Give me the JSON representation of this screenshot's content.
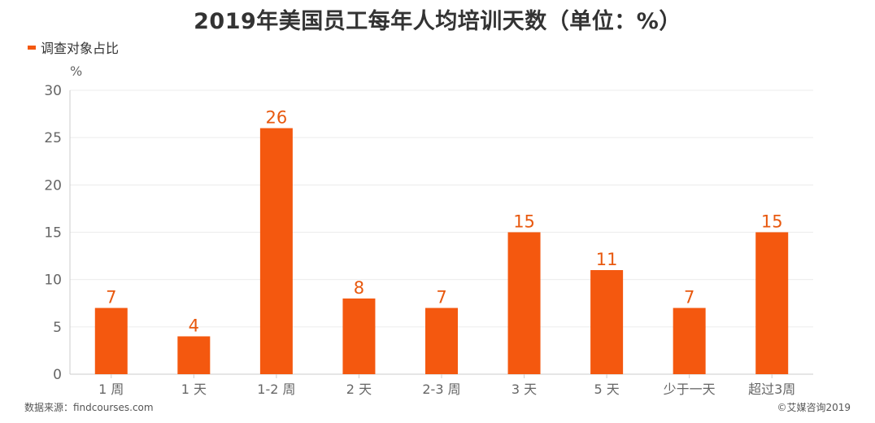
{
  "chart_data": {
    "type": "bar",
    "title": "2019年美国员工每年人均培训天数（单位：%）",
    "legend": {
      "position": "top-left",
      "entries": [
        "调查对象占比"
      ]
    },
    "ylabel": "%",
    "xlabel": "",
    "ylim": [
      0,
      30
    ],
    "yticks": [
      0,
      5,
      10,
      15,
      20,
      25,
      30
    ],
    "grid": true,
    "categories": [
      "1 周",
      "1 天",
      "1-2 周",
      "2 天",
      "2-3 周",
      "3 天",
      "5 天",
      "少于一天",
      "超过3周"
    ],
    "series": [
      {
        "name": "调查对象占比",
        "values": [
          7,
          4,
          26,
          8,
          7,
          15,
          11,
          7,
          15
        ]
      }
    ],
    "bar_color": "#f4580f",
    "label_color": "#e8590f"
  },
  "footer": {
    "source": "数据来源：findcourses.com",
    "copyright": "©艾媒咨询2019"
  }
}
